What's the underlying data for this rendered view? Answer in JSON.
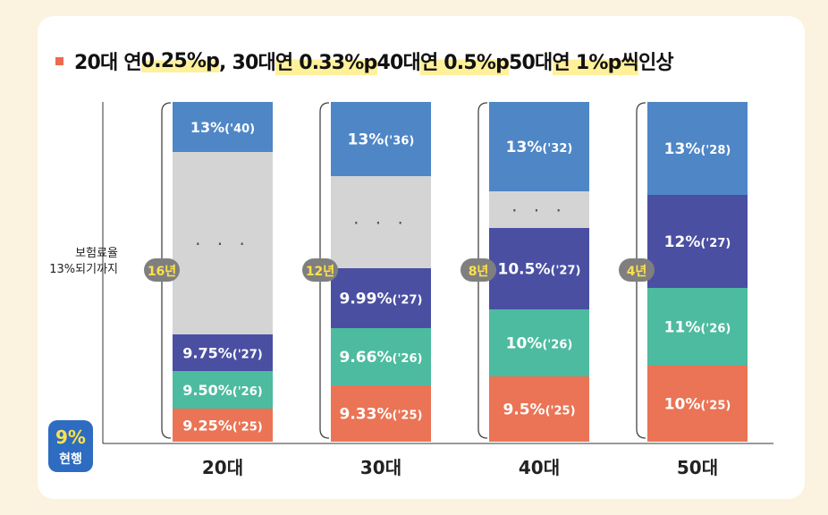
{
  "title": {
    "bullet_color": "#ec6a4d",
    "parts": [
      {
        "text": "20대 연 ",
        "highlight": false
      },
      {
        "text": "0.25%p",
        "highlight": true
      },
      {
        "text": ", 30대 ",
        "highlight": false
      },
      {
        "text": "연 0.33%p",
        "highlight": true
      },
      {
        "text": " 40대 ",
        "highlight": false
      },
      {
        "text": "연 0.5%p",
        "highlight": true
      },
      {
        "text": " 50대 ",
        "highlight": false
      },
      {
        "text": "연 1%p씩",
        "highlight": true
      },
      {
        "text": " 인상",
        "highlight": false
      }
    ]
  },
  "y_axis_label": [
    "보험료율",
    "13%되기까지"
  ],
  "current_badge": {
    "value": "9%",
    "label": "현행",
    "color": "#2d6cc0"
  },
  "colors": {
    "blue": "#4f86c6",
    "gray": "#d4d4d4",
    "indigo": "#4a4fa2",
    "teal": "#4dbba0",
    "coral": "#ea7455",
    "year_badge": "#7f7f7f",
    "year_text": "#ffe14d",
    "category_text": "#222222"
  },
  "chart_data": {
    "type": "stacked-bar",
    "title": "20대 연 0.25%p, 30대 연 0.33%p 40대 연 0.5%p 50대 연 1%p씩 인상",
    "ylabel": "보험료율 13%되기까지",
    "baseline": "9% 현행",
    "categories": [
      "20대",
      "30대",
      "40대",
      "50대"
    ],
    "bars": [
      {
        "category": "20대",
        "years_to_target": "16년",
        "segments": [
          {
            "rate": "9.25%",
            "year": "('25)",
            "color": "coral"
          },
          {
            "rate": "9.50%",
            "year": "('26)",
            "color": "teal"
          },
          {
            "rate": "9.75%",
            "year": "('27)",
            "color": "indigo"
          },
          {
            "ellipsis": true,
            "color": "gray"
          },
          {
            "rate": "13%",
            "year": "('40)",
            "color": "blue"
          }
        ]
      },
      {
        "category": "30대",
        "years_to_target": "12년",
        "segments": [
          {
            "rate": "9.33%",
            "year": "('25)",
            "color": "coral"
          },
          {
            "rate": "9.66%",
            "year": "('26)",
            "color": "teal"
          },
          {
            "rate": "9.99%",
            "year": "('27)",
            "color": "indigo"
          },
          {
            "ellipsis": true,
            "color": "gray"
          },
          {
            "rate": "13%",
            "year": "('36)",
            "color": "blue"
          }
        ]
      },
      {
        "category": "40대",
        "years_to_target": "8년",
        "segments": [
          {
            "rate": "9.5%",
            "year": "('25)",
            "color": "coral"
          },
          {
            "rate": "10%",
            "year": "('26)",
            "color": "teal"
          },
          {
            "rate": "10.5%",
            "year": "('27)",
            "color": "indigo"
          },
          {
            "ellipsis": true,
            "color": "gray"
          },
          {
            "rate": "13%",
            "year": "('32)",
            "color": "blue"
          }
        ]
      },
      {
        "category": "50대",
        "years_to_target": "4년",
        "segments": [
          {
            "rate": "10%",
            "year": "('25)",
            "color": "coral"
          },
          {
            "rate": "11%",
            "year": "('26)",
            "color": "teal"
          },
          {
            "rate": "12%",
            "year": "('27)",
            "color": "indigo"
          },
          {
            "rate": "13%",
            "year": "('28)",
            "color": "blue"
          }
        ]
      }
    ]
  }
}
